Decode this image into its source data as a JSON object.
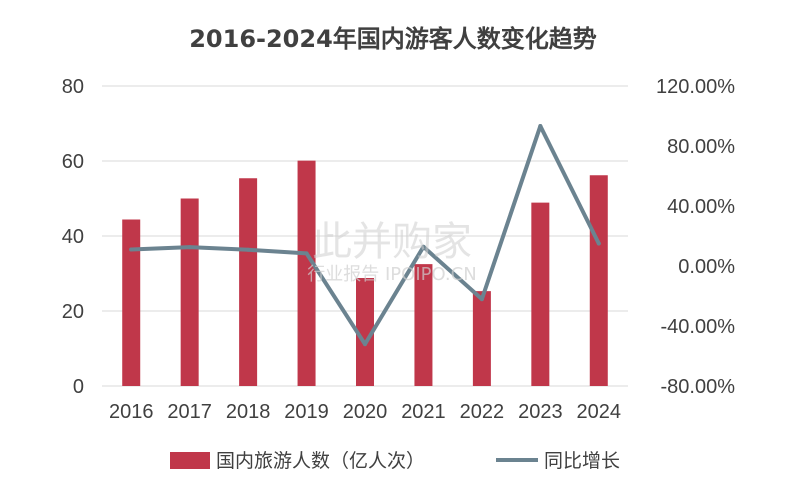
{
  "chart_data": {
    "type": "bar",
    "title": "2016-2024年国内游客人数变化趋势",
    "categories": [
      "2016",
      "2017",
      "2018",
      "2019",
      "2020",
      "2021",
      "2022",
      "2023",
      "2024"
    ],
    "series": [
      {
        "name": "国内旅游人数（亿人次）",
        "type": "bar",
        "axis": "left",
        "color": "#c0374a",
        "values": [
          44.4,
          50.0,
          55.4,
          60.1,
          28.8,
          32.5,
          25.3,
          48.9,
          56.2
        ]
      },
      {
        "name": "同比增长",
        "type": "line",
        "axis": "right",
        "color": "#6b8390",
        "values": [
          11.0,
          12.6,
          10.8,
          8.4,
          -52.1,
          12.8,
          -22.1,
          93.3,
          15.0
        ]
      }
    ],
    "y_left": {
      "min": 0,
      "max": 80,
      "ticks": [
        "0",
        "20",
        "40",
        "60",
        "80"
      ]
    },
    "y_right": {
      "min": -80,
      "max": 120,
      "ticks": [
        "-80.00%",
        "-40.00%",
        "0.00%",
        "40.00%",
        "80.00%",
        "120.00%"
      ]
    },
    "grid": true,
    "legend_position": "bottom"
  },
  "watermark": {
    "main": "此并购家",
    "sub": "行业报告 IPOIPO.CN"
  }
}
